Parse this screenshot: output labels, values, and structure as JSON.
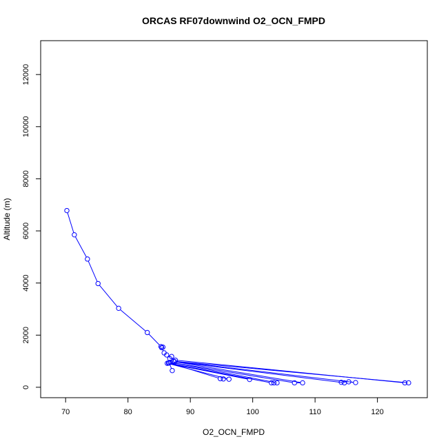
{
  "chart_data": {
    "type": "scatter",
    "title": "ORCAS RF07downwind O2_OCN_FMPD",
    "xlabel": "O2_OCN_FMPD",
    "ylabel": "Altitude (m)",
    "xlim": [
      66,
      128
    ],
    "ylim": [
      -400,
      13300
    ],
    "xticks": [
      70,
      80,
      90,
      100,
      110,
      120
    ],
    "yticks": [
      0,
      2000,
      4000,
      6000,
      8000,
      10000,
      12000
    ],
    "grid": false,
    "connected": true,
    "marker": "open-circle",
    "color": "#0000ff",
    "points": [
      {
        "x": 70.2,
        "y": 6780
      },
      {
        "x": 71.4,
        "y": 5850
      },
      {
        "x": 73.5,
        "y": 4920
      },
      {
        "x": 75.2,
        "y": 3980
      },
      {
        "x": 78.5,
        "y": 3030
      },
      {
        "x": 83.1,
        "y": 2100
      },
      {
        "x": 85.3,
        "y": 1560
      },
      {
        "x": 85.6,
        "y": 1540
      },
      {
        "x": 85.4,
        "y": 1520
      },
      {
        "x": 85.8,
        "y": 1320
      },
      {
        "x": 86.2,
        "y": 1240
      },
      {
        "x": 87.0,
        "y": 1180
      },
      {
        "x": 86.7,
        "y": 1100
      },
      {
        "x": 87.6,
        "y": 1040
      },
      {
        "x": 124.4,
        "y": 170
      },
      {
        "x": 125.0,
        "y": 170
      },
      {
        "x": 87.3,
        "y": 1000
      },
      {
        "x": 116.5,
        "y": 180
      },
      {
        "x": 115.4,
        "y": 210
      },
      {
        "x": 114.2,
        "y": 190
      },
      {
        "x": 114.7,
        "y": 170
      },
      {
        "x": 87.5,
        "y": 980
      },
      {
        "x": 108.0,
        "y": 170
      },
      {
        "x": 106.7,
        "y": 170
      },
      {
        "x": 86.8,
        "y": 960
      },
      {
        "x": 103.9,
        "y": 170
      },
      {
        "x": 103.4,
        "y": 170
      },
      {
        "x": 103.0,
        "y": 170
      },
      {
        "x": 86.5,
        "y": 930
      },
      {
        "x": 99.5,
        "y": 300
      },
      {
        "x": 86.3,
        "y": 920
      },
      {
        "x": 96.2,
        "y": 310
      },
      {
        "x": 95.3,
        "y": 320
      },
      {
        "x": 94.8,
        "y": 330
      },
      {
        "x": 86.6,
        "y": 940
      },
      {
        "x": 87.1,
        "y": 640
      }
    ]
  }
}
